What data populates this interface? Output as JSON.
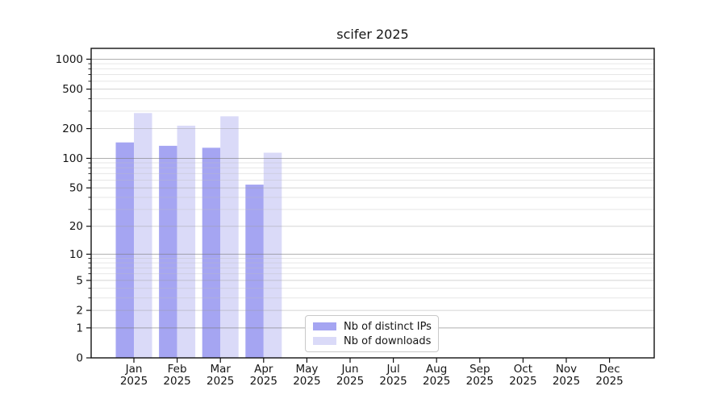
{
  "chart_data": {
    "type": "bar",
    "title": "scifer 2025",
    "categories": [
      "Jan\n2025",
      "Feb\n2025",
      "Mar\n2025",
      "Apr\n2025",
      "May\n2025",
      "Jun\n2025",
      "Jul\n2025",
      "Aug\n2025",
      "Sep\n2025",
      "Oct\n2025",
      "Nov\n2025",
      "Dec\n2025"
    ],
    "series": [
      {
        "name": "Nb of distinct IPs",
        "color": "#a5a5f2",
        "values": [
          145,
          134,
          128,
          54,
          0,
          0,
          0,
          0,
          0,
          0,
          0,
          0
        ]
      },
      {
        "name": "Nb of downloads",
        "color": "#dadaf8",
        "values": [
          287,
          214,
          266,
          114,
          0,
          0,
          0,
          0,
          0,
          0,
          0,
          0
        ]
      }
    ],
    "yscale": "log1p",
    "yticks": [
      0,
      1,
      2,
      5,
      10,
      20,
      50,
      100,
      200,
      500,
      1000
    ],
    "minor_yticks": [
      3,
      4,
      6,
      7,
      8,
      9,
      30,
      40,
      60,
      70,
      80,
      90,
      300,
      400,
      600,
      700,
      800,
      900
    ],
    "ylim": [
      0,
      1285
    ],
    "xlabel": "",
    "ylabel": "",
    "grid": true,
    "legend_position": "inside-bottom-center-left",
    "frame_color": "#111111",
    "major_grid_color": "#afafaf",
    "minor_grid_color": "#e6e6e6"
  }
}
